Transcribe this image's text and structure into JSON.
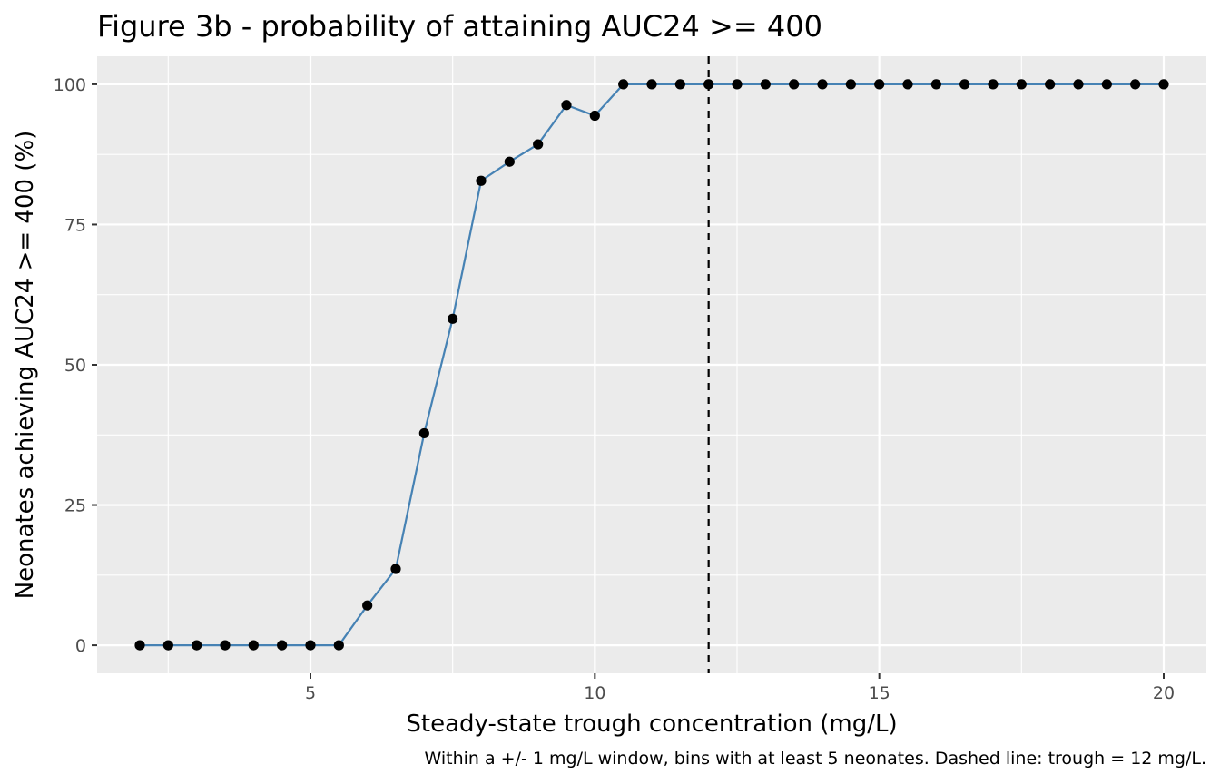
{
  "chart_data": {
    "type": "line",
    "title": "Figure 3b - probability of attaining AUC24 >= 400",
    "xlabel": "Steady-state trough concentration (mg/L)",
    "ylabel": "Neonates achieving AUC24 >= 400 (%)",
    "caption": "Within a +/- 1 mg/L window, bins with at least 5 neonates. Dashed line: trough = 12 mg/L.",
    "xlim": [
      1.25,
      20.75
    ],
    "ylim": [
      -5,
      105
    ],
    "x_ticks": [
      5,
      10,
      15,
      20
    ],
    "x_tick_labels": [
      "5",
      "10",
      "15",
      "20"
    ],
    "y_ticks": [
      0,
      25,
      50,
      75,
      100
    ],
    "y_tick_labels": [
      "0",
      "25",
      "50",
      "75",
      "100"
    ],
    "reference_line": {
      "axis": "x",
      "value": 12,
      "style": "dashed"
    },
    "series": [
      {
        "color": "#4682b4",
        "marker_color": "#000000",
        "x": [
          2,
          2.5,
          3,
          3.5,
          4,
          4.5,
          5,
          5.5,
          6,
          6.5,
          7,
          7.5,
          8,
          8.5,
          9,
          9.5,
          10,
          10.5,
          11,
          11.5,
          12,
          12.5,
          13,
          13.5,
          14,
          14.5,
          15,
          15.5,
          16,
          16.5,
          17,
          17.5,
          18,
          18.5,
          19,
          19.5,
          20
        ],
        "y": [
          0,
          0,
          0,
          0,
          0,
          0,
          0,
          0,
          7.1,
          13.6,
          37.8,
          58.2,
          82.8,
          86.2,
          89.3,
          96.3,
          94.4,
          100,
          100,
          100,
          100,
          100,
          100,
          100,
          100,
          100,
          100,
          100,
          100,
          100,
          100,
          100,
          100,
          100,
          100,
          100,
          100
        ]
      }
    ],
    "panel_background": "#ebebeb",
    "grid": true
  }
}
